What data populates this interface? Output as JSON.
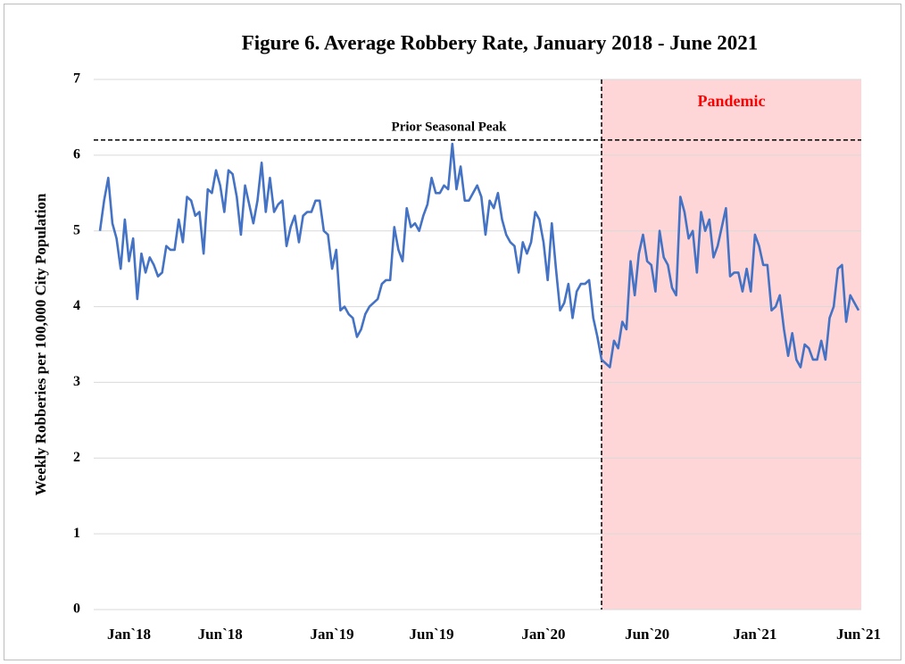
{
  "chart_data": {
    "type": "line",
    "title": "Figure 6. Average Robbery Rate, January 2018 - June 2021",
    "y_label": "Weekly Robberies  per 100,000 City Population",
    "ylim": [
      0,
      7
    ],
    "yticks": [
      0,
      1,
      2,
      3,
      4,
      5,
      6,
      7
    ],
    "grid": true,
    "color": "#4472c4",
    "reference_line": {
      "label": "Prior Seasonal Peak",
      "value": 6.2
    },
    "shaded_region": {
      "label": "Pandemic",
      "from_index": 121
    },
    "categories": [
      null,
      null,
      null,
      null,
      null,
      null,
      null,
      "Jan`18",
      null,
      null,
      null,
      null,
      null,
      null,
      null,
      null,
      null,
      null,
      null,
      null,
      null,
      null,
      null,
      null,
      null,
      null,
      null,
      null,
      null,
      "Jun`18",
      null,
      null,
      null,
      null,
      null,
      null,
      null,
      null,
      null,
      null,
      null,
      null,
      null,
      null,
      null,
      null,
      null,
      null,
      null,
      null,
      null,
      null,
      null,
      null,
      null,
      null,
      "Jan`19",
      null,
      null,
      null,
      null,
      null,
      null,
      null,
      null,
      null,
      null,
      null,
      null,
      null,
      null,
      null,
      null,
      null,
      null,
      null,
      null,
      null,
      null,
      null,
      "Jun`19",
      null,
      null,
      null,
      null,
      null,
      null,
      null,
      null,
      null,
      null,
      null,
      null,
      null,
      null,
      null,
      null,
      null,
      null,
      null,
      null,
      null,
      null,
      null,
      null,
      null,
      null,
      "Jan`20",
      null,
      null,
      null,
      null,
      null,
      null,
      null,
      null,
      null,
      null,
      null,
      null,
      null,
      null,
      null,
      null,
      null,
      null,
      null,
      null,
      null,
      null,
      null,
      null,
      "Jun`20",
      null,
      null,
      null,
      null,
      null,
      null,
      null,
      null,
      null,
      null,
      null,
      null,
      null,
      null,
      null,
      null,
      null,
      null,
      null,
      null,
      null,
      null,
      null,
      null,
      null,
      "Jan`21",
      null,
      null,
      null,
      null,
      null,
      null,
      null,
      null,
      null,
      null,
      null,
      null,
      null,
      null,
      null,
      null,
      null,
      null,
      null,
      null,
      null,
      null,
      null,
      null,
      "Jun`21"
    ],
    "values": [
      5.0,
      5.4,
      5.7,
      5.1,
      4.9,
      4.5,
      5.15,
      4.6,
      4.9,
      4.1,
      4.7,
      4.45,
      4.65,
      4.55,
      4.4,
      4.45,
      4.8,
      4.75,
      4.75,
      5.15,
      4.85,
      5.45,
      5.4,
      5.2,
      5.25,
      4.7,
      5.55,
      5.5,
      5.8,
      5.6,
      5.25,
      5.8,
      5.75,
      5.45,
      4.95,
      5.6,
      5.35,
      5.1,
      5.4,
      5.9,
      5.25,
      5.7,
      5.25,
      5.35,
      5.4,
      4.8,
      5.05,
      5.2,
      4.85,
      5.2,
      5.25,
      5.25,
      5.4,
      5.4,
      5.0,
      4.95,
      4.5,
      4.75,
      3.95,
      4.0,
      3.9,
      3.85,
      3.6,
      3.7,
      3.9,
      4.0,
      4.05,
      4.1,
      4.3,
      4.35,
      4.35,
      5.05,
      4.75,
      4.6,
      5.3,
      5.05,
      5.1,
      5.0,
      5.2,
      5.35,
      5.7,
      5.5,
      5.5,
      5.6,
      5.55,
      6.15,
      5.55,
      5.85,
      5.4,
      5.4,
      5.5,
      5.6,
      5.45,
      4.95,
      5.4,
      5.3,
      5.5,
      5.15,
      4.95,
      4.85,
      4.8,
      4.45,
      4.85,
      4.7,
      4.85,
      5.25,
      5.15,
      4.85,
      4.35,
      5.1,
      4.5,
      3.95,
      4.05,
      4.3,
      3.85,
      4.2,
      4.3,
      4.3,
      4.35,
      3.85,
      3.6,
      3.3,
      3.25,
      3.2,
      3.55,
      3.45,
      3.8,
      3.7,
      4.6,
      4.15,
      4.7,
      4.95,
      4.6,
      4.55,
      4.2,
      5.0,
      4.65,
      4.55,
      4.25,
      4.15,
      5.45,
      5.25,
      4.9,
      5.0,
      4.45,
      5.25,
      5.0,
      5.15,
      4.65,
      4.8,
      5.05,
      5.3,
      4.4,
      4.45,
      4.45,
      4.2,
      4.5,
      4.2,
      4.95,
      4.8,
      4.55,
      4.55,
      3.95,
      4.0,
      4.15,
      3.7,
      3.35,
      3.65,
      3.3,
      3.2,
      3.5,
      3.45,
      3.3,
      3.3,
      3.55,
      3.3,
      3.85,
      4.0,
      4.5,
      4.55,
      3.8,
      4.15,
      4.05,
      3.95
    ]
  }
}
